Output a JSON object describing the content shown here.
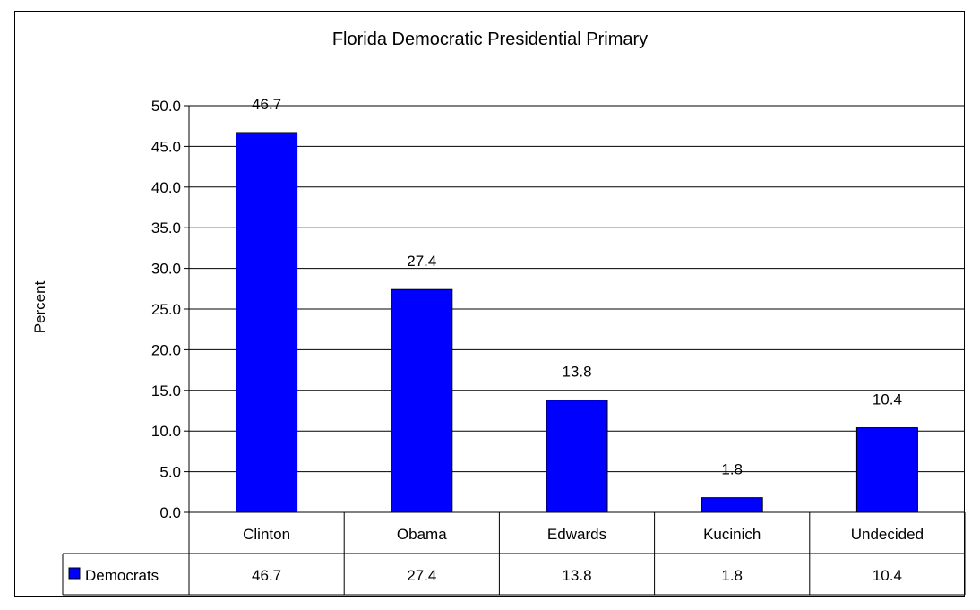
{
  "chart_data": {
    "type": "bar",
    "title": "Florida Democratic Presidential Primary",
    "ylabel": "Percent",
    "xlabel": "",
    "categories": [
      "Clinton",
      "Obama",
      "Edwards",
      "Kucinich",
      "Undecided"
    ],
    "series": [
      {
        "name": "Democrats",
        "values": [
          46.7,
          27.4,
          13.8,
          1.8,
          10.4
        ],
        "labels": [
          "46.7",
          "27.4",
          "13.8",
          "1.8",
          "10.4"
        ],
        "color": "#0000ff"
      }
    ],
    "ylim": [
      0,
      50
    ],
    "yticks": [
      "0.0",
      "5.0",
      "10.0",
      "15.0",
      "20.0",
      "25.0",
      "30.0",
      "35.0",
      "40.0",
      "45.0",
      "50.0"
    ],
    "grid": true,
    "data_table": true
  }
}
